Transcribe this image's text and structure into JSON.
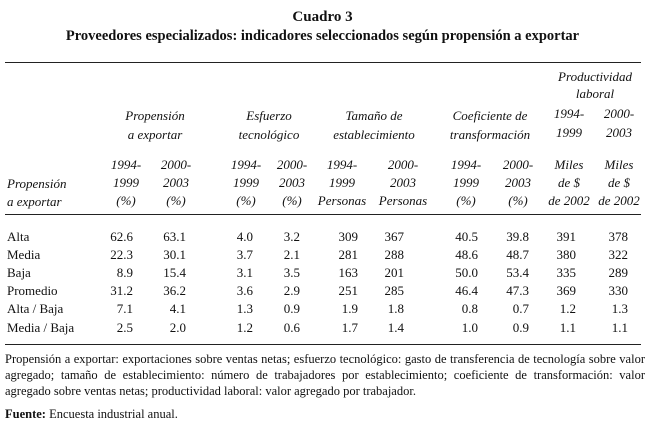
{
  "title": "Cuadro 3",
  "subtitle": "Proveedores especializados: indicadores seleccionados según propensión a exportar",
  "header": {
    "row_label": [
      "Propensión",
      "a exportar"
    ],
    "groups": [
      {
        "name": [
          "Propensión",
          "a exportar"
        ],
        "years": [
          "1994-",
          "1999",
          "(%)"
        ],
        "years2": [
          "2000-",
          "2003",
          "(%)"
        ]
      },
      {
        "name": [
          "Esfuerzo",
          "tecnológico"
        ],
        "years": [
          "1994-",
          "1999",
          "(%)"
        ],
        "years2": [
          "2000-",
          "2003",
          "(%)"
        ]
      },
      {
        "name": [
          "Tamaño de",
          "establecimiento"
        ],
        "years": [
          "1994-",
          "1999",
          "Personas"
        ],
        "years2": [
          "2000-",
          "2003",
          "Personas"
        ]
      },
      {
        "name": [
          "Coeficiente de",
          "transformación"
        ],
        "years": [
          "1994-",
          "1999",
          "(%)"
        ],
        "years2": [
          "2000-",
          "2003",
          "(%)"
        ]
      },
      {
        "name": [
          "Productividad",
          "laboral"
        ],
        "years": [
          "1994-",
          "1999",
          "Miles",
          "de $",
          "de 2002"
        ],
        "years2": [
          "2000-",
          "2003",
          "Miles",
          "de $",
          "de 2002"
        ]
      }
    ]
  },
  "rows": [
    {
      "label": "Alta",
      "values": [
        "62.6",
        "63.1",
        "4.0",
        "3.2",
        "309",
        "367",
        "40.5",
        "39.8",
        "391",
        "378"
      ]
    },
    {
      "label": "Media",
      "values": [
        "22.3",
        "30.1",
        "3.7",
        "2.1",
        "281",
        "288",
        "48.6",
        "48.7",
        "380",
        "322"
      ]
    },
    {
      "label": "Baja",
      "values": [
        "8.9",
        "15.4",
        "3.1",
        "3.5",
        "163",
        "201",
        "50.0",
        "53.4",
        "335",
        "289"
      ]
    },
    {
      "label": "Promedio",
      "values": [
        "31.2",
        "36.2",
        "3.6",
        "2.9",
        "251",
        "285",
        "46.4",
        "47.3",
        "369",
        "330"
      ]
    },
    {
      "label": "Alta / Baja",
      "values": [
        "7.1",
        "4.1",
        "1.3",
        "0.9",
        "1.9",
        "1.8",
        "0.8",
        "0.7",
        "1.2",
        "1.3"
      ]
    },
    {
      "label": "Media / Baja",
      "values": [
        "2.5",
        "2.0",
        "1.2",
        "0.6",
        "1.7",
        "1.4",
        "1.0",
        "0.9",
        "1.1",
        "1.1"
      ]
    }
  ],
  "notes": {
    "definitions": "Propensión a exportar: exportaciones sobre ventas netas; esfuerzo tecnológico: gasto de transferencia de tecnología sobre valor agregado; tamaño de establecimiento: número de trabajadores por establecimiento; coeficiente de transformación: valor agregado sobre ventas netas; productividad laboral: valor agregado por trabajador.",
    "source_label": "Fuente:",
    "source_text": "Encuesta industrial anual."
  }
}
